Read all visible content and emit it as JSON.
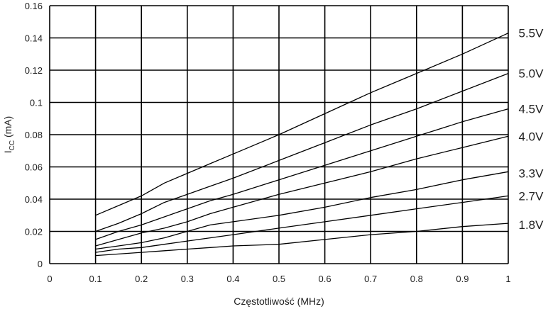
{
  "chart_data": {
    "type": "line",
    "title": "",
    "xlabel": "Częstotliwość (MHz)",
    "ylabel": {
      "main": "I",
      "sub": "CC",
      "unit": " (mA)"
    },
    "xlim": [
      0,
      1
    ],
    "ylim": [
      0,
      0.16
    ],
    "grid": true,
    "legend": "labels at right end of lines",
    "x_ticks": [
      "0",
      "0.1",
      "0.2",
      "0.3",
      "0.4",
      "0.5",
      "0.6",
      "0.7",
      "0.8",
      "0.9",
      "1"
    ],
    "y_ticks": [
      "0",
      "0.02",
      "0.04",
      "0.06",
      "0.08",
      "0.1",
      "0.12",
      "0.14",
      "0.16"
    ],
    "x": [
      0.1,
      0.15,
      0.2,
      0.25,
      0.3,
      0.35,
      0.4,
      0.5,
      0.6,
      0.7,
      0.8,
      0.9,
      1.0
    ],
    "series": [
      {
        "name": "5.5V",
        "values": [
          0.03,
          0.036,
          0.042,
          0.05,
          0.056,
          0.062,
          0.068,
          0.08,
          0.093,
          0.106,
          0.118,
          0.13,
          0.143
        ]
      },
      {
        "name": "5.0V",
        "values": [
          0.02,
          0.025,
          0.031,
          0.038,
          0.043,
          0.048,
          0.053,
          0.064,
          0.075,
          0.086,
          0.096,
          0.107,
          0.118
        ]
      },
      {
        "name": "4.5V",
        "values": [
          0.015,
          0.02,
          0.024,
          0.029,
          0.034,
          0.039,
          0.043,
          0.052,
          0.061,
          0.07,
          0.079,
          0.088,
          0.096
        ]
      },
      {
        "name": "4.0V",
        "values": [
          0.011,
          0.015,
          0.019,
          0.022,
          0.026,
          0.031,
          0.035,
          0.043,
          0.05,
          0.057,
          0.065,
          0.072,
          0.079
        ]
      },
      {
        "name": "3.3V",
        "values": [
          0.009,
          0.011,
          0.013,
          0.016,
          0.02,
          0.024,
          0.026,
          0.03,
          0.035,
          0.041,
          0.046,
          0.052,
          0.057
        ]
      },
      {
        "name": "2.7V",
        "values": [
          0.007,
          0.009,
          0.01,
          0.012,
          0.014,
          0.016,
          0.018,
          0.022,
          0.026,
          0.03,
          0.034,
          0.038,
          0.042
        ]
      },
      {
        "name": "1.8V",
        "values": [
          0.005,
          0.006,
          0.007,
          0.008,
          0.009,
          0.01,
          0.011,
          0.012,
          0.015,
          0.018,
          0.02,
          0.023,
          0.025
        ]
      }
    ],
    "colors": {
      "line": "#000000",
      "grid": "#000000",
      "text": "#222222"
    }
  }
}
